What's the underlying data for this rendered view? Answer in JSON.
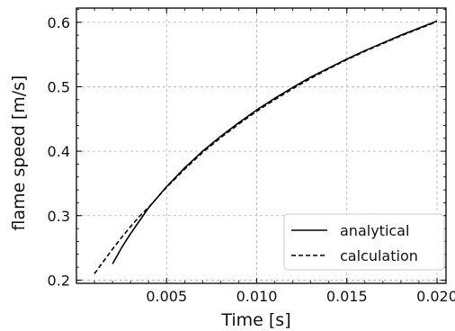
{
  "chart_data": {
    "type": "line",
    "title": "",
    "xlabel": "Time [s]",
    "ylabel": "flame speed [m/s]",
    "xlim": [
      0.0,
      0.0205
    ],
    "ylim": [
      0.195,
      0.622
    ],
    "xticks": [
      0.005,
      0.01,
      0.015,
      0.02
    ],
    "xtick_labels": [
      "0.005",
      "0.010",
      "0.015",
      "0.020"
    ],
    "yticks": [
      0.2,
      0.3,
      0.4,
      0.5,
      0.6
    ],
    "ytick_labels": [
      "0.2",
      "0.3",
      "0.4",
      "0.5",
      "0.6"
    ],
    "grid": true,
    "legend_position": "lower-right",
    "series": [
      {
        "name": "analytical",
        "style": "solid",
        "color": "#000000",
        "x": [
          0.002,
          0.0025,
          0.003,
          0.0035,
          0.004,
          0.005,
          0.006,
          0.007,
          0.008,
          0.009,
          0.01,
          0.011,
          0.012,
          0.013,
          0.014,
          0.015,
          0.016,
          0.017,
          0.018,
          0.019,
          0.02
        ],
        "y": [
          0.225,
          0.25,
          0.272,
          0.292,
          0.312,
          0.345,
          0.374,
          0.4,
          0.423,
          0.444,
          0.464,
          0.482,
          0.499,
          0.515,
          0.529,
          0.543,
          0.556,
          0.568,
          0.58,
          0.591,
          0.602
        ]
      },
      {
        "name": "calculation",
        "style": "dashed",
        "color": "#000000",
        "x": [
          0.001,
          0.0015,
          0.002,
          0.0025,
          0.003,
          0.0035,
          0.004,
          0.005,
          0.006,
          0.007,
          0.008,
          0.009,
          0.01,
          0.011,
          0.012,
          0.013,
          0.014,
          0.015,
          0.016,
          0.017,
          0.018,
          0.019,
          0.02
        ],
        "y": [
          0.21,
          0.229,
          0.248,
          0.266,
          0.283,
          0.299,
          0.313,
          0.344,
          0.372,
          0.398,
          0.421,
          0.442,
          0.462,
          0.48,
          0.497,
          0.513,
          0.528,
          0.542,
          0.555,
          0.567,
          0.579,
          0.59,
          0.601
        ]
      }
    ]
  }
}
